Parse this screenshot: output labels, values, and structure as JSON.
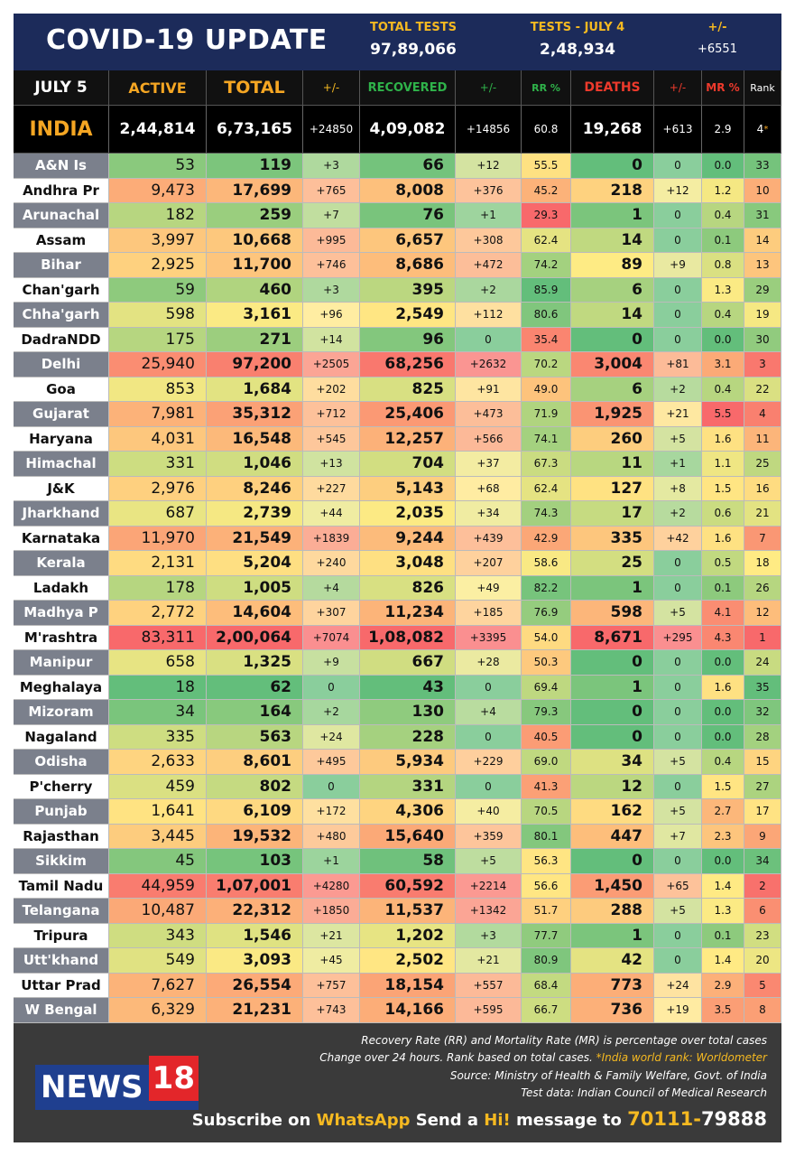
{
  "header": {
    "title": "COVID-19 UPDATE",
    "stats": [
      {
        "label": "TOTAL TESTS",
        "value": "97,89,066"
      },
      {
        "label": "TESTS - JULY 4",
        "value": "2,48,934"
      },
      {
        "label": "+/-",
        "value": "+6551"
      }
    ]
  },
  "table": {
    "columns": [
      "JULY 5",
      "ACTIVE",
      "TOTAL",
      "+/-",
      "RECOVERED",
      "+/-",
      "RR %",
      "DEATHS",
      "+/-",
      "MR %",
      "Rank"
    ],
    "india": [
      "INDIA",
      "2,44,814",
      "6,73,165",
      "+24850",
      "4,09,082",
      "+14856",
      "60.8",
      "19,268",
      "+613",
      "2.9",
      "4"
    ],
    "india_rank_mark": "*",
    "rows": [
      [
        "A&N Is",
        "53",
        "119",
        "+3",
        "66",
        "+12",
        "55.5",
        "0",
        "0",
        "0.0",
        "33"
      ],
      [
        "Andhra Pr",
        "9,473",
        "17,699",
        "+765",
        "8,008",
        "+376",
        "45.2",
        "218",
        "+12",
        "1.2",
        "10"
      ],
      [
        "Arunachal",
        "182",
        "259",
        "+7",
        "76",
        "+1",
        "29.3",
        "1",
        "0",
        "0.4",
        "31"
      ],
      [
        "Assam",
        "3,997",
        "10,668",
        "+995",
        "6,657",
        "+308",
        "62.4",
        "14",
        "0",
        "0.1",
        "14"
      ],
      [
        "Bihar",
        "2,925",
        "11,700",
        "+746",
        "8,686",
        "+472",
        "74.2",
        "89",
        "+9",
        "0.8",
        "13"
      ],
      [
        "Chan'garh",
        "59",
        "460",
        "+3",
        "395",
        "+2",
        "85.9",
        "6",
        "0",
        "1.3",
        "29"
      ],
      [
        "Chha'garh",
        "598",
        "3,161",
        "+96",
        "2,549",
        "+112",
        "80.6",
        "14",
        "0",
        "0.4",
        "19"
      ],
      [
        "DadraNDD",
        "175",
        "271",
        "+14",
        "96",
        "0",
        "35.4",
        "0",
        "0",
        "0.0",
        "30"
      ],
      [
        "Delhi",
        "25,940",
        "97,200",
        "+2505",
        "68,256",
        "+2632",
        "70.2",
        "3,004",
        "+81",
        "3.1",
        "3"
      ],
      [
        "Goa",
        "853",
        "1,684",
        "+202",
        "825",
        "+91",
        "49.0",
        "6",
        "+2",
        "0.4",
        "22"
      ],
      [
        "Gujarat",
        "7,981",
        "35,312",
        "+712",
        "25,406",
        "+473",
        "71.9",
        "1,925",
        "+21",
        "5.5",
        "4"
      ],
      [
        "Haryana",
        "4,031",
        "16,548",
        "+545",
        "12,257",
        "+566",
        "74.1",
        "260",
        "+5",
        "1.6",
        "11"
      ],
      [
        "Himachal",
        "331",
        "1,046",
        "+13",
        "704",
        "+37",
        "67.3",
        "11",
        "+1",
        "1.1",
        "25"
      ],
      [
        "J&K",
        "2,976",
        "8,246",
        "+227",
        "5,143",
        "+68",
        "62.4",
        "127",
        "+8",
        "1.5",
        "16"
      ],
      [
        "Jharkhand",
        "687",
        "2,739",
        "+44",
        "2,035",
        "+34",
        "74.3",
        "17",
        "+2",
        "0.6",
        "21"
      ],
      [
        "Karnataka",
        "11,970",
        "21,549",
        "+1839",
        "9,244",
        "+439",
        "42.9",
        "335",
        "+42",
        "1.6",
        "7"
      ],
      [
        "Kerala",
        "2,131",
        "5,204",
        "+240",
        "3,048",
        "+207",
        "58.6",
        "25",
        "0",
        "0.5",
        "18"
      ],
      [
        "Ladakh",
        "178",
        "1,005",
        "+4",
        "826",
        "+49",
        "82.2",
        "1",
        "0",
        "0.1",
        "26"
      ],
      [
        "Madhya P",
        "2,772",
        "14,604",
        "+307",
        "11,234",
        "+185",
        "76.9",
        "598",
        "+5",
        "4.1",
        "12"
      ],
      [
        "M'rashtra",
        "83,311",
        "2,00,064",
        "+7074",
        "1,08,082",
        "+3395",
        "54.0",
        "8,671",
        "+295",
        "4.3",
        "1"
      ],
      [
        "Manipur",
        "658",
        "1,325",
        "+9",
        "667",
        "+28",
        "50.3",
        "0",
        "0",
        "0.0",
        "24"
      ],
      [
        "Meghalaya",
        "18",
        "62",
        "0",
        "43",
        "0",
        "69.4",
        "1",
        "0",
        "1.6",
        "35"
      ],
      [
        "Mizoram",
        "34",
        "164",
        "+2",
        "130",
        "+4",
        "79.3",
        "0",
        "0",
        "0.0",
        "32"
      ],
      [
        "Nagaland",
        "335",
        "563",
        "+24",
        "228",
        "0",
        "40.5",
        "0",
        "0",
        "0.0",
        "28"
      ],
      [
        "Odisha",
        "2,633",
        "8,601",
        "+495",
        "5,934",
        "+229",
        "69.0",
        "34",
        "+5",
        "0.4",
        "15"
      ],
      [
        "P'cherry",
        "459",
        "802",
        "0",
        "331",
        "0",
        "41.3",
        "12",
        "0",
        "1.5",
        "27"
      ],
      [
        "Punjab",
        "1,641",
        "6,109",
        "+172",
        "4,306",
        "+40",
        "70.5",
        "162",
        "+5",
        "2.7",
        "17"
      ],
      [
        "Rajasthan",
        "3,445",
        "19,532",
        "+480",
        "15,640",
        "+359",
        "80.1",
        "447",
        "+7",
        "2.3",
        "9"
      ],
      [
        "Sikkim",
        "45",
        "103",
        "+1",
        "58",
        "+5",
        "56.3",
        "0",
        "0",
        "0.0",
        "34"
      ],
      [
        "Tamil Nadu",
        "44,959",
        "1,07,001",
        "+4280",
        "60,592",
        "+2214",
        "56.6",
        "1,450",
        "+65",
        "1.4",
        "2"
      ],
      [
        "Telangana",
        "10,487",
        "22,312",
        "+1850",
        "11,537",
        "+1342",
        "51.7",
        "288",
        "+5",
        "1.3",
        "6"
      ],
      [
        "Tripura",
        "343",
        "1,546",
        "+21",
        "1,202",
        "+3",
        "77.7",
        "1",
        "0",
        "0.1",
        "23"
      ],
      [
        "Utt'khand",
        "549",
        "3,093",
        "+45",
        "2,502",
        "+21",
        "80.9",
        "42",
        "0",
        "1.4",
        "20"
      ],
      [
        "Uttar Prad",
        "7,627",
        "26,554",
        "+757",
        "18,154",
        "+557",
        "68.4",
        "773",
        "+24",
        "2.9",
        "5"
      ],
      [
        "W Bengal",
        "6,329",
        "21,231",
        "+743",
        "14,166",
        "+595",
        "66.7",
        "736",
        "+19",
        "3.5",
        "8"
      ]
    ]
  },
  "footer": {
    "notes": [
      "Recovery Rate (RR) and Mortality Rate (MR) is percentage over total cases",
      "Change over 24 hours. Rank based on total cases. ",
      "*India world rank: Worldometer",
      "Source: Ministry of Health & Family Welfare, Govt. of India",
      "Test data: Indian Council of Medical Research"
    ],
    "logo": [
      "NEWS",
      "18"
    ],
    "subscribe": [
      "Subscribe on ",
      "WhatsApp",
      " Send a ",
      "Hi!",
      " message to ",
      "70111-",
      "79888"
    ]
  }
}
